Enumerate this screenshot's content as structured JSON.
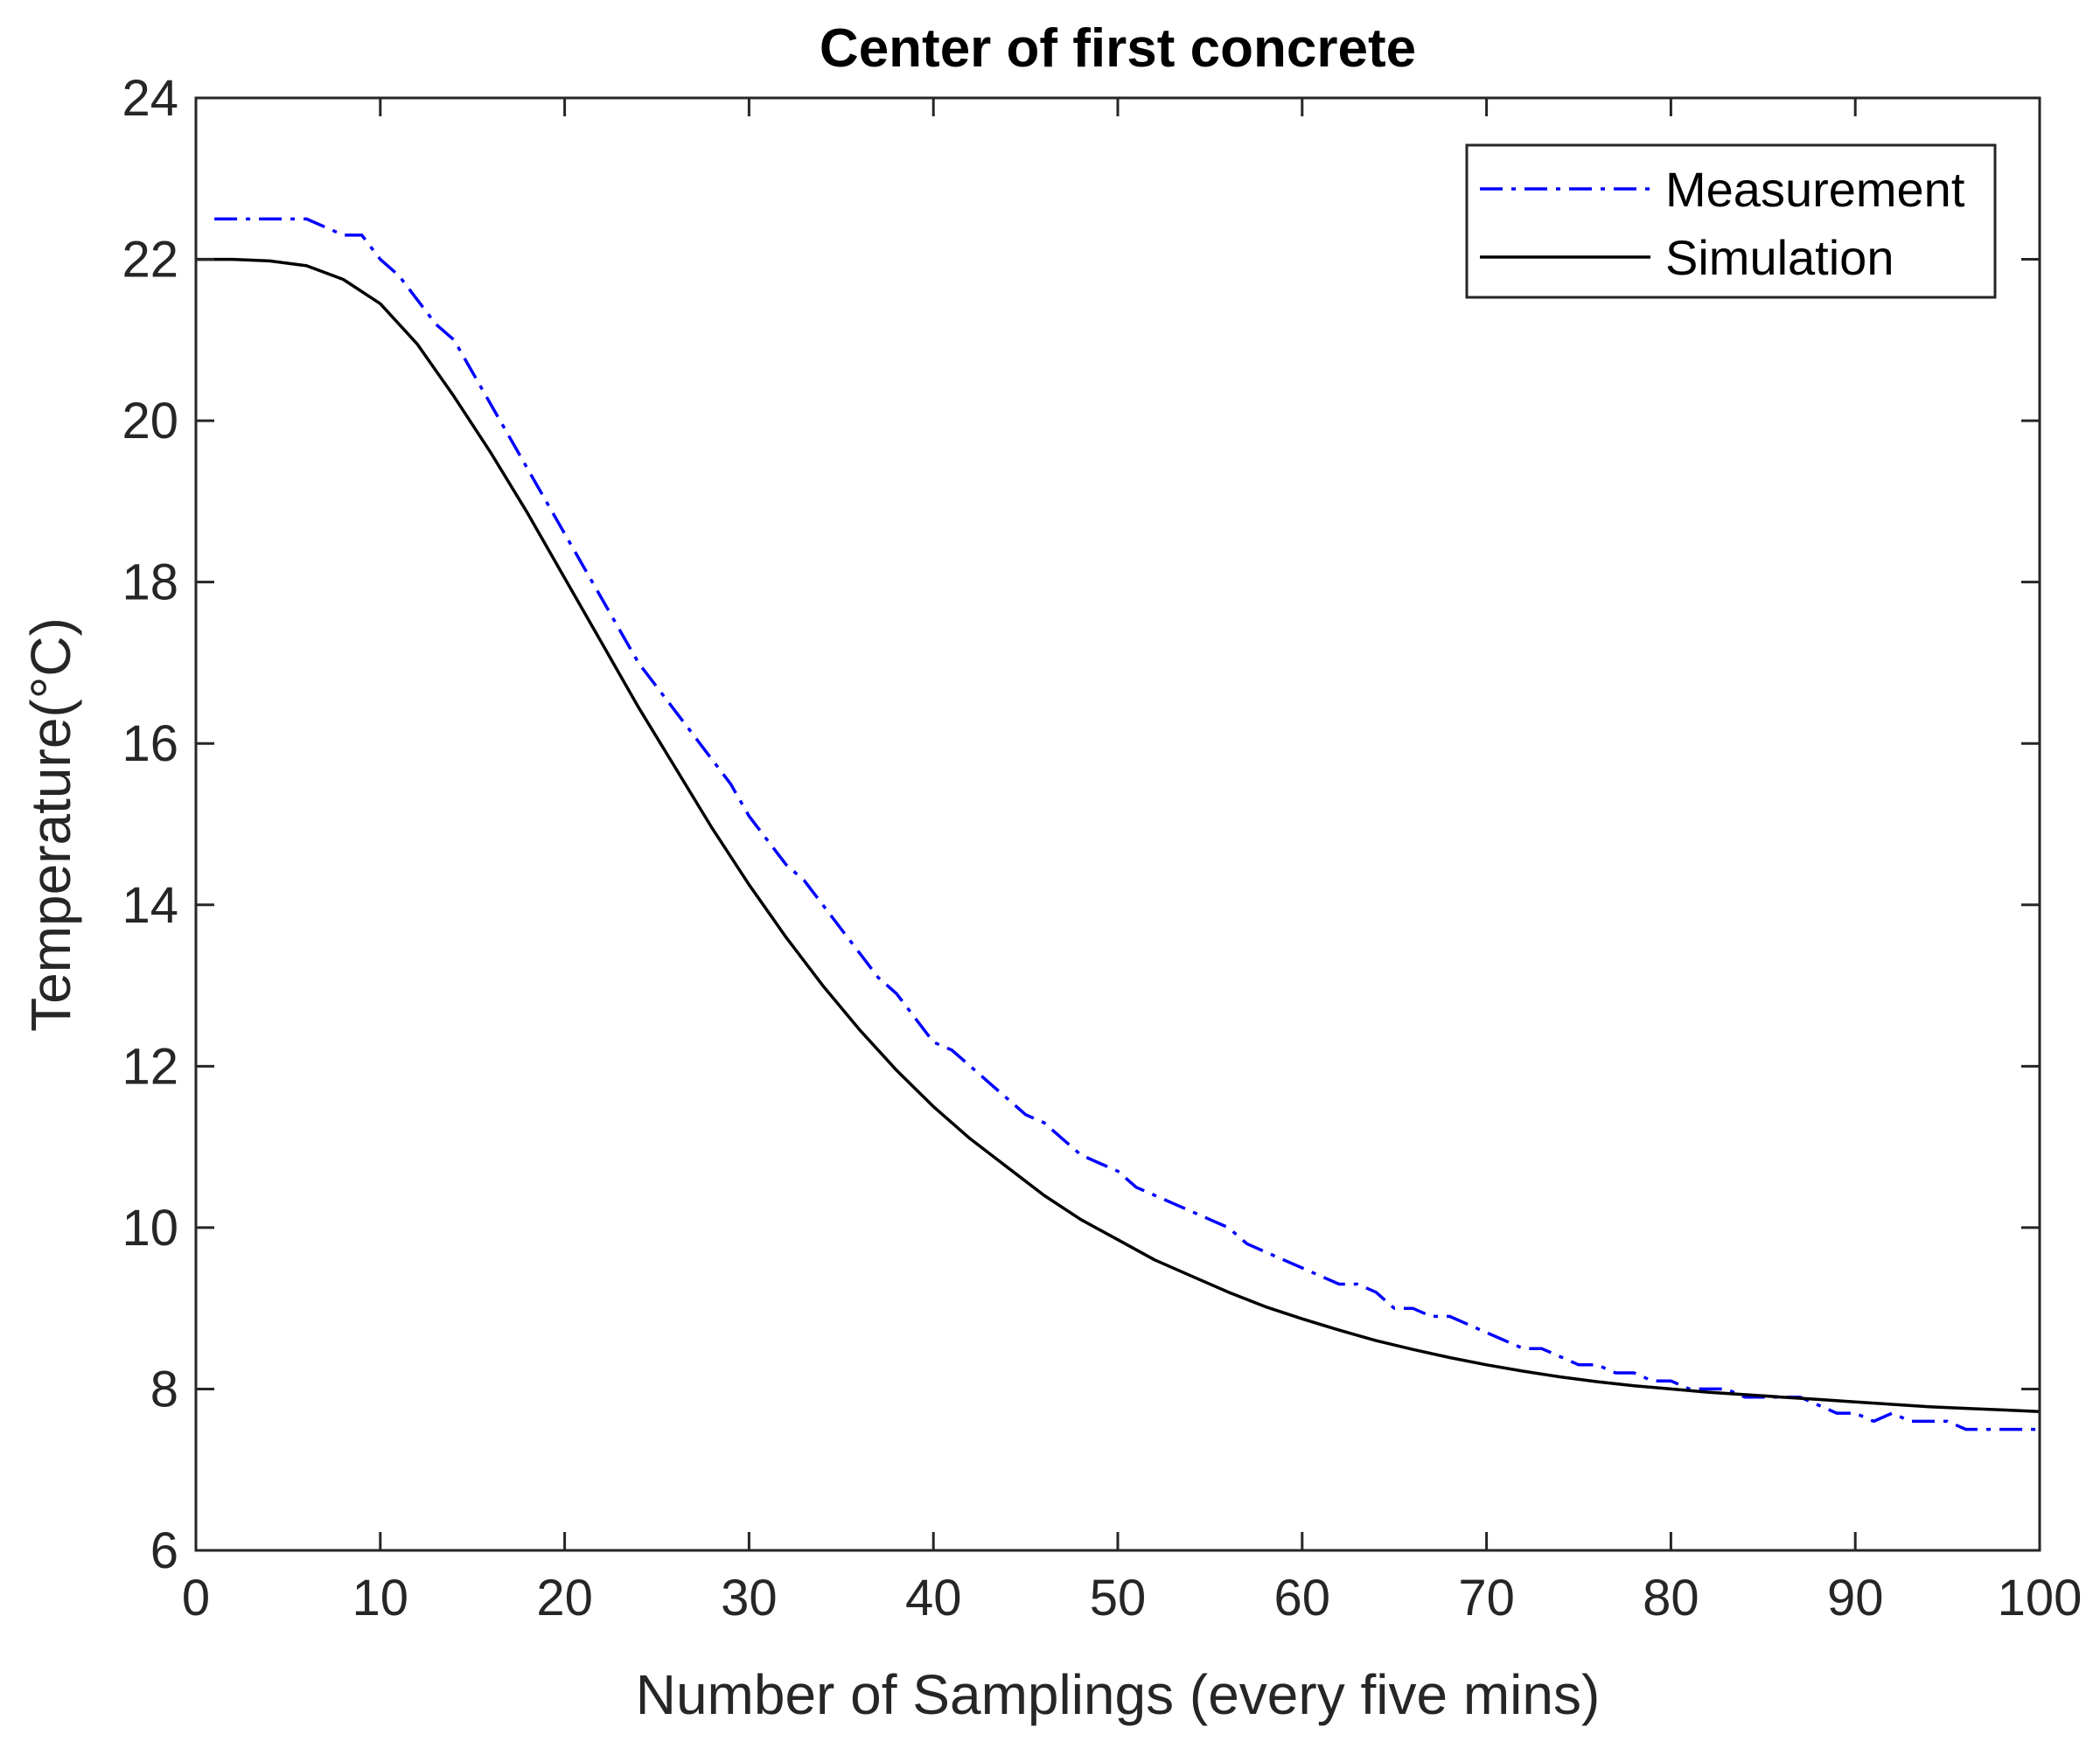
{
  "chart_data": {
    "type": "line",
    "title": "Center of first concrete",
    "xlabel": "Number of Samplings (every five mins)",
    "ylabel": "Temperature(°C)",
    "xlim": [
      0,
      100
    ],
    "ylim": [
      6,
      24
    ],
    "xticks": [
      0,
      10,
      20,
      30,
      40,
      50,
      60,
      70,
      80,
      90,
      100
    ],
    "yticks": [
      6,
      8,
      10,
      12,
      14,
      16,
      18,
      20,
      22,
      24
    ],
    "xtick_labels": [
      "0",
      "10",
      "20",
      "30",
      "40",
      "50",
      "60",
      "70",
      "80",
      "90",
      "100"
    ],
    "ytick_labels": [
      "6",
      "8",
      "10",
      "12",
      "14",
      "16",
      "18",
      "20",
      "22",
      "24"
    ],
    "grid": false,
    "legend_position": "top-right",
    "series": [
      {
        "name": "Measurement",
        "color": "#0000ff",
        "style": "dash-dot",
        "x": [
          1,
          2,
          3,
          4,
          5,
          6,
          7,
          8,
          9,
          10,
          11,
          12,
          13,
          14,
          15,
          16,
          17,
          18,
          19,
          20,
          21,
          22,
          23,
          24,
          25,
          26,
          27,
          28,
          29,
          30,
          31,
          32,
          33,
          34,
          35,
          36,
          37,
          38,
          39,
          40,
          41,
          42,
          43,
          44,
          45,
          46,
          47,
          48,
          49,
          50,
          51,
          52,
          53,
          54,
          55,
          56,
          57,
          58,
          59,
          60,
          61,
          62,
          63,
          64,
          65,
          66,
          67,
          68,
          69,
          70,
          71,
          72,
          73,
          74,
          75,
          76,
          77,
          78,
          79,
          80,
          81,
          82,
          83,
          84,
          85,
          86,
          87,
          88,
          89,
          90,
          91,
          92,
          93,
          94,
          95,
          96,
          97,
          98,
          99,
          100
        ],
        "y": [
          22.5,
          22.5,
          22.5,
          22.5,
          22.5,
          22.5,
          22.4,
          22.3,
          22.3,
          22.0,
          21.8,
          21.5,
          21.2,
          21.0,
          20.6,
          20.2,
          19.8,
          19.4,
          19.0,
          18.6,
          18.2,
          17.8,
          17.4,
          17.0,
          16.7,
          16.4,
          16.1,
          15.8,
          15.5,
          15.1,
          14.8,
          14.5,
          14.3,
          14.0,
          13.7,
          13.4,
          13.1,
          12.9,
          12.6,
          12.3,
          12.2,
          12.0,
          11.8,
          11.6,
          11.4,
          11.3,
          11.1,
          10.9,
          10.8,
          10.7,
          10.5,
          10.4,
          10.3,
          10.2,
          10.1,
          10.0,
          9.8,
          9.7,
          9.6,
          9.5,
          9.4,
          9.3,
          9.3,
          9.2,
          9.0,
          9.0,
          8.9,
          8.9,
          8.8,
          8.7,
          8.6,
          8.5,
          8.5,
          8.4,
          8.3,
          8.3,
          8.2,
          8.2,
          8.1,
          8.1,
          8.0,
          8.0,
          8.0,
          7.9,
          7.9,
          7.9,
          7.9,
          7.8,
          7.7,
          7.7,
          7.6,
          7.7,
          7.6,
          7.6,
          7.6,
          7.5,
          7.5,
          7.5,
          7.5,
          7.5
        ]
      },
      {
        "name": "Simulation",
        "color": "#000000",
        "style": "solid",
        "x": [
          0,
          2,
          4,
          6,
          8,
          10,
          12,
          14,
          16,
          18,
          20,
          22,
          24,
          26,
          28,
          30,
          32,
          34,
          36,
          38,
          40,
          42,
          44,
          46,
          48,
          50,
          52,
          54,
          56,
          58,
          60,
          62,
          64,
          66,
          68,
          70,
          72,
          74,
          76,
          78,
          80,
          82,
          84,
          86,
          88,
          90,
          92,
          94,
          96,
          98,
          100
        ],
        "y": [
          22.0,
          22.0,
          21.98,
          21.92,
          21.75,
          21.45,
          20.95,
          20.3,
          19.6,
          18.85,
          18.05,
          17.25,
          16.45,
          15.7,
          14.95,
          14.25,
          13.6,
          13.0,
          12.45,
          11.95,
          11.5,
          11.1,
          10.75,
          10.4,
          10.1,
          9.85,
          9.6,
          9.4,
          9.2,
          9.02,
          8.87,
          8.73,
          8.6,
          8.49,
          8.39,
          8.3,
          8.22,
          8.15,
          8.09,
          8.04,
          8.0,
          7.96,
          7.93,
          7.9,
          7.87,
          7.84,
          7.81,
          7.78,
          7.76,
          7.74,
          7.72
        ]
      }
    ]
  }
}
